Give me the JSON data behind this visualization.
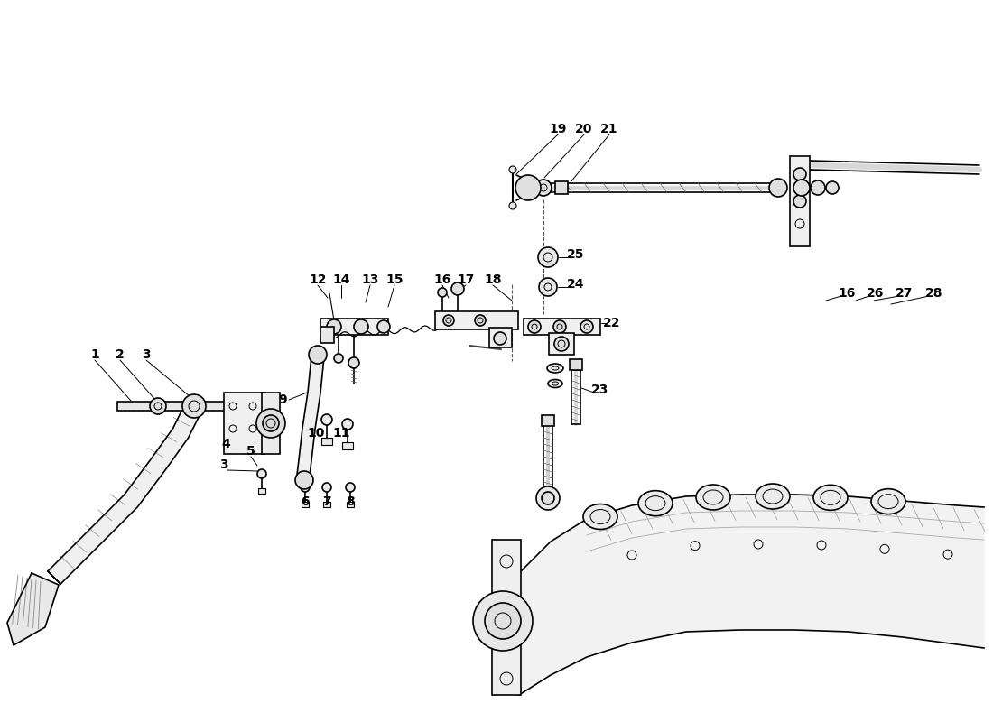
{
  "bg_color": "#ffffff",
  "line_color": "#000000",
  "fig_width": 11.0,
  "fig_height": 8.0
}
